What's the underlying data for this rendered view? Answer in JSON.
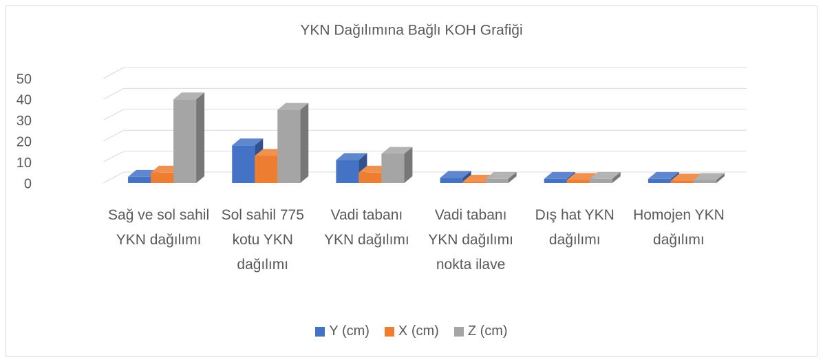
{
  "chart_data": {
    "type": "bar3d",
    "title": "YKN Dağılımına Bağlı KOH Grafiği",
    "categories": [
      "Sağ ve sol sahil YKN dağılımı",
      "Sol sahil 775 kotu YKN dağılımı",
      "Vadi tabanı YKN dağılımı",
      "Vadi tabanı YKN dağılımı nokta ilave",
      "Dış hat YKN dağılımı",
      "Homojen YKN dağılımı"
    ],
    "series": [
      {
        "name": "Y (cm)",
        "color": "#4472c4",
        "values": [
          3,
          18,
          11,
          2.5,
          2,
          2
        ]
      },
      {
        "name": "X (cm)",
        "color": "#ed7d31",
        "values": [
          5,
          13,
          5,
          0.7,
          1.5,
          1.2
        ]
      },
      {
        "name": "Z (cm)",
        "color": "#a5a5a5",
        "values": [
          40,
          35,
          14,
          2,
          2,
          1.5
        ]
      }
    ],
    "ylim": [
      0,
      50
    ],
    "yticks": [
      0,
      10,
      20,
      30,
      40,
      50
    ],
    "grid": true,
    "legend": "bottom"
  }
}
